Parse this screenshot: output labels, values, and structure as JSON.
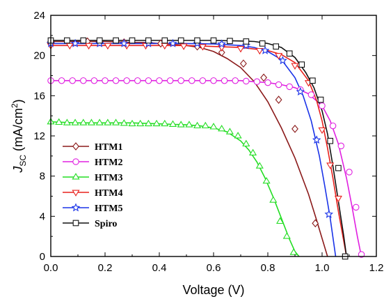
{
  "chart_data": {
    "type": "line",
    "xlabel": "Voltage (V)",
    "ylabel_main": "J",
    "ylabel_sub": "SC",
    "ylabel_unit": " (mA/cm",
    "ylabel_sup": "2",
    "ylabel_close": ")",
    "xlim": [
      0.0,
      1.2
    ],
    "ylim": [
      0,
      24
    ],
    "xticks": [
      "0.0",
      "0.2",
      "0.4",
      "0.6",
      "0.8",
      "1.0",
      "1.2"
    ],
    "xtick_values": [
      0.0,
      0.2,
      0.4,
      0.6,
      0.8,
      1.0,
      1.2
    ],
    "yticks": [
      "0",
      "4",
      "8",
      "12",
      "16",
      "20",
      "24"
    ],
    "ytick_values": [
      0,
      4,
      8,
      12,
      16,
      20,
      24
    ],
    "grid": false,
    "legend_position": "bottom-left",
    "series": [
      {
        "name": "HTM1",
        "color": "#8b1a1a",
        "marker": "diamond",
        "x": [
          0.0,
          0.05,
          0.1,
          0.15,
          0.2,
          0.25,
          0.3,
          0.35,
          0.4,
          0.45,
          0.5,
          0.55,
          0.6,
          0.65,
          0.7,
          0.75,
          0.8,
          0.85,
          0.9,
          0.95,
          0.98,
          1.0,
          1.02
        ],
        "y": [
          21.4,
          21.4,
          21.4,
          21.4,
          21.4,
          21.35,
          21.3,
          21.3,
          21.2,
          21.1,
          21.0,
          20.8,
          20.4,
          19.7,
          18.8,
          17.4,
          15.4,
          12.8,
          9.8,
          6.2,
          3.6,
          1.8,
          0.0
        ],
        "marker_x": [
          0.0,
          0.135,
          0.27,
          0.405,
          0.54,
          0.63,
          0.71,
          0.785,
          0.84,
          0.9,
          0.975
        ],
        "marker_y": [
          21.4,
          21.4,
          21.3,
          21.2,
          20.9,
          20.3,
          19.2,
          17.8,
          15.6,
          12.7,
          3.3
        ]
      },
      {
        "name": "HTM2",
        "color": "#e020e0",
        "marker": "circle",
        "x": [
          0.0,
          0.1,
          0.2,
          0.3,
          0.4,
          0.5,
          0.6,
          0.7,
          0.75,
          0.8,
          0.85,
          0.9,
          0.95,
          1.0,
          1.03,
          1.06,
          1.09,
          1.11,
          1.13,
          1.145
        ],
        "y": [
          17.5,
          17.5,
          17.5,
          17.5,
          17.5,
          17.5,
          17.5,
          17.5,
          17.4,
          17.3,
          17.1,
          16.8,
          16.2,
          15.0,
          13.5,
          11.2,
          7.8,
          5.0,
          2.0,
          0.0
        ],
        "marker_x": [
          0.0,
          0.04,
          0.08,
          0.12,
          0.16,
          0.2,
          0.24,
          0.28,
          0.32,
          0.36,
          0.4,
          0.44,
          0.48,
          0.52,
          0.56,
          0.6,
          0.64,
          0.68,
          0.72,
          0.76,
          0.8,
          0.84,
          0.88,
          0.92,
          0.96,
          1.0,
          1.04,
          1.07,
          1.1,
          1.125,
          1.145
        ],
        "marker_y": [
          17.5,
          17.5,
          17.5,
          17.5,
          17.5,
          17.5,
          17.5,
          17.5,
          17.5,
          17.5,
          17.5,
          17.5,
          17.5,
          17.5,
          17.5,
          17.5,
          17.5,
          17.5,
          17.45,
          17.4,
          17.3,
          17.1,
          16.9,
          16.6,
          16.1,
          15.0,
          13.0,
          11.0,
          8.4,
          4.9,
          0.2
        ]
      },
      {
        "name": "HTM3",
        "color": "#22dd22",
        "marker": "triangle-up",
        "x": [
          0.0,
          0.1,
          0.2,
          0.3,
          0.4,
          0.5,
          0.55,
          0.6,
          0.65,
          0.7,
          0.73,
          0.76,
          0.79,
          0.82,
          0.85,
          0.88,
          0.9,
          0.915
        ],
        "y": [
          13.4,
          13.3,
          13.3,
          13.3,
          13.2,
          13.1,
          13.0,
          12.8,
          12.4,
          11.5,
          10.6,
          9.4,
          7.8,
          5.9,
          3.8,
          1.7,
          0.5,
          0.0
        ],
        "marker_x": [
          0.0,
          0.03,
          0.06,
          0.09,
          0.12,
          0.15,
          0.18,
          0.21,
          0.24,
          0.27,
          0.3,
          0.33,
          0.36,
          0.39,
          0.42,
          0.45,
          0.48,
          0.51,
          0.54,
          0.57,
          0.6,
          0.63,
          0.66,
          0.69,
          0.72,
          0.745,
          0.77,
          0.795,
          0.82,
          0.845,
          0.87,
          0.895
        ],
        "marker_y": [
          13.4,
          13.35,
          13.3,
          13.3,
          13.3,
          13.3,
          13.3,
          13.3,
          13.3,
          13.25,
          13.2,
          13.2,
          13.2,
          13.2,
          13.2,
          13.15,
          13.1,
          13.1,
          13.0,
          13.0,
          12.9,
          12.7,
          12.4,
          12.0,
          11.2,
          10.3,
          9.0,
          7.5,
          5.6,
          3.5,
          2.0,
          0.4
        ]
      },
      {
        "name": "HTM4",
        "color": "#e8201c",
        "marker": "triangle-down",
        "x": [
          0.0,
          0.1,
          0.2,
          0.3,
          0.4,
          0.5,
          0.6,
          0.7,
          0.8,
          0.85,
          0.9,
          0.95,
          0.98,
          1.0,
          1.02,
          1.04,
          1.06,
          1.08,
          1.09
        ],
        "y": [
          21.0,
          21.0,
          21.0,
          21.0,
          21.0,
          21.0,
          20.9,
          20.8,
          20.5,
          20.1,
          19.3,
          17.5,
          15.5,
          13.5,
          10.8,
          7.8,
          4.5,
          1.5,
          0.0
        ],
        "marker_x": [
          0.0,
          0.07,
          0.14,
          0.21,
          0.28,
          0.35,
          0.42,
          0.49,
          0.56,
          0.63,
          0.7,
          0.77,
          0.84,
          0.9,
          0.95,
          1.0,
          1.03,
          1.06
        ],
        "marker_y": [
          21.0,
          21.0,
          21.0,
          21.0,
          21.0,
          21.0,
          21.0,
          20.95,
          20.9,
          20.8,
          20.7,
          20.5,
          20.0,
          19.0,
          17.3,
          12.6,
          9.1,
          5.8
        ]
      },
      {
        "name": "HTM5",
        "color": "#1a33e8",
        "marker": "star",
        "x": [
          0.0,
          0.1,
          0.2,
          0.3,
          0.4,
          0.5,
          0.6,
          0.7,
          0.75,
          0.8,
          0.85,
          0.9,
          0.93,
          0.96,
          0.99,
          1.01,
          1.03,
          1.05
        ],
        "y": [
          21.2,
          21.2,
          21.2,
          21.2,
          21.2,
          21.2,
          21.15,
          21.0,
          20.8,
          20.4,
          19.6,
          17.8,
          16.0,
          13.5,
          10.0,
          7.0,
          3.8,
          0.0
        ],
        "marker_x": [
          0.0,
          0.09,
          0.18,
          0.27,
          0.36,
          0.45,
          0.54,
          0.63,
          0.72,
          0.79,
          0.855,
          0.92,
          0.98,
          1.025
        ],
        "marker_y": [
          21.2,
          21.2,
          21.2,
          21.2,
          21.2,
          21.2,
          21.2,
          21.15,
          21.0,
          20.5,
          19.5,
          16.4,
          11.6,
          4.2
        ]
      },
      {
        "name": "Spiro",
        "color": "#111111",
        "marker": "square",
        "x": [
          0.0,
          0.1,
          0.2,
          0.3,
          0.4,
          0.5,
          0.6,
          0.7,
          0.75,
          0.8,
          0.85,
          0.9,
          0.94,
          0.97,
          1.0,
          1.02,
          1.04,
          1.06,
          1.08,
          1.09
        ],
        "y": [
          21.5,
          21.5,
          21.5,
          21.5,
          21.5,
          21.5,
          21.5,
          21.45,
          21.4,
          21.2,
          20.8,
          19.8,
          18.3,
          16.8,
          14.5,
          12.2,
          9.0,
          5.5,
          2.0,
          0.0
        ],
        "marker_x": [
          0.0,
          0.06,
          0.12,
          0.18,
          0.24,
          0.3,
          0.36,
          0.42,
          0.48,
          0.54,
          0.6,
          0.66,
          0.72,
          0.78,
          0.83,
          0.88,
          0.925,
          0.965,
          0.995,
          1.03,
          1.06,
          1.085
        ],
        "marker_y": [
          21.5,
          21.5,
          21.5,
          21.5,
          21.5,
          21.5,
          21.5,
          21.5,
          21.5,
          21.5,
          21.5,
          21.45,
          21.4,
          21.2,
          20.9,
          20.2,
          19.1,
          17.5,
          15.6,
          11.5,
          8.8,
          0.0
        ]
      }
    ]
  }
}
